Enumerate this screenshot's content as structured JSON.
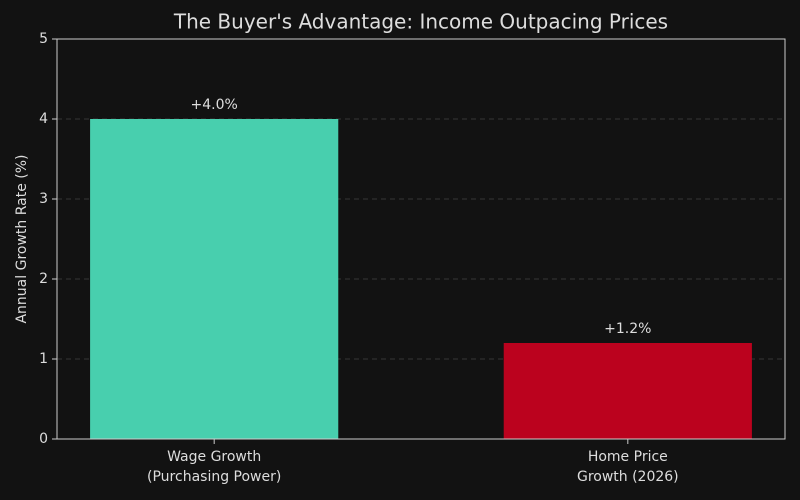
{
  "chart_data": {
    "type": "bar",
    "title": "The Buyer's Advantage: Income Outpacing Prices",
    "y_label": "Annual Growth Rate (%)",
    "categories": [
      "Wage Growth\n(Purchasing Power)",
      "Home Price\nGrowth (2026)"
    ],
    "values": [
      4.0,
      1.2
    ],
    "value_labels": [
      "+4.0%",
      "+1.2%"
    ],
    "colors": [
      "#48cfae",
      "#bb021e"
    ],
    "ylim": [
      0,
      5
    ],
    "yticks": [
      0,
      1,
      2,
      3,
      4,
      5
    ],
    "grid": true
  }
}
